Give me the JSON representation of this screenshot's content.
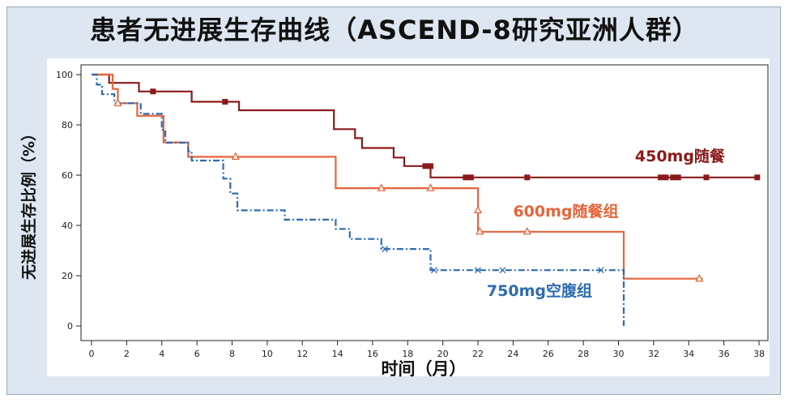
{
  "title": "患者无进展生存曲线（ASCEND-8研究亚洲人群）",
  "chart_data": {
    "type": "line",
    "subtype": "kaplan-meier-step",
    "title": "患者无进展生存曲线（ASCEND-8研究亚洲人群）",
    "xlabel": "时间（月）",
    "ylabel": "无进展生存比例（%）",
    "xlim": [
      0,
      38
    ],
    "ylim": [
      0,
      100
    ],
    "xticks": [
      0,
      2,
      4,
      6,
      8,
      10,
      12,
      14,
      16,
      18,
      20,
      22,
      24,
      26,
      28,
      30,
      32,
      34,
      36,
      38
    ],
    "yticks": [
      0,
      20,
      40,
      60,
      80,
      100
    ],
    "grid": false,
    "series": [
      {
        "name": "450mg随餐",
        "color": "#8b1a1a",
        "line_style": "solid",
        "censor_marker": "square",
        "steps": [
          [
            0,
            100
          ],
          [
            1.0,
            100
          ],
          [
            1.0,
            96.7
          ],
          [
            2.7,
            96.7
          ],
          [
            2.7,
            93.3
          ],
          [
            5.7,
            93.3
          ],
          [
            5.7,
            89.2
          ],
          [
            8.4,
            89.2
          ],
          [
            8.4,
            85.8
          ],
          [
            13.8,
            85.8
          ],
          [
            13.8,
            78.3
          ],
          [
            15.0,
            78.3
          ],
          [
            15.0,
            74.7
          ],
          [
            15.4,
            74.7
          ],
          [
            15.4,
            70.8
          ],
          [
            17.2,
            70.8
          ],
          [
            17.2,
            67.0
          ],
          [
            17.8,
            67.0
          ],
          [
            17.8,
            63.6
          ],
          [
            19.3,
            63.6
          ],
          [
            19.3,
            59.1
          ],
          [
            38.0,
            59.1
          ]
        ],
        "censored": [
          [
            3.5,
            93.3
          ],
          [
            7.6,
            89.2
          ],
          [
            19.0,
            63.6
          ],
          [
            19.3,
            63.6
          ],
          [
            21.3,
            59.1
          ],
          [
            21.6,
            59.1
          ],
          [
            24.8,
            59.1
          ],
          [
            32.4,
            59.1
          ],
          [
            32.7,
            59.1
          ],
          [
            33.1,
            59.1
          ],
          [
            33.4,
            59.1
          ],
          [
            35.0,
            59.1
          ],
          [
            37.9,
            59.1
          ]
        ],
        "label": "450mg随餐"
      },
      {
        "name": "600mg随餐组",
        "color": "#e8643a",
        "line_style": "solid",
        "censor_marker": "triangle",
        "steps": [
          [
            0,
            100
          ],
          [
            1.2,
            100
          ],
          [
            1.2,
            94.3
          ],
          [
            1.5,
            94.3
          ],
          [
            1.5,
            88.6
          ],
          [
            2.6,
            88.6
          ],
          [
            2.6,
            83.6
          ],
          [
            4.1,
            83.6
          ],
          [
            4.1,
            73.0
          ],
          [
            5.5,
            73.0
          ],
          [
            5.5,
            67.3
          ],
          [
            13.9,
            67.3
          ],
          [
            13.9,
            54.8
          ],
          [
            22.0,
            54.8
          ],
          [
            22.0,
            37.5
          ],
          [
            30.3,
            37.5
          ],
          [
            30.3,
            18.8
          ],
          [
            34.8,
            18.8
          ]
        ],
        "censored": [
          [
            1.5,
            88.6
          ],
          [
            8.2,
            67.3
          ],
          [
            16.5,
            54.8
          ],
          [
            19.3,
            54.8
          ],
          [
            22.0,
            46.0
          ],
          [
            22.1,
            37.5
          ],
          [
            24.8,
            37.5
          ],
          [
            34.6,
            18.8
          ]
        ],
        "label": "600mg随餐组"
      },
      {
        "name": "750mg空腹组",
        "color": "#2e6bb0",
        "line_style": "dashdot",
        "censor_marker": "x",
        "steps": [
          [
            0,
            100
          ],
          [
            0.3,
            100
          ],
          [
            0.3,
            96.0
          ],
          [
            0.6,
            96.0
          ],
          [
            0.6,
            92.2
          ],
          [
            1.3,
            92.2
          ],
          [
            1.3,
            88.6
          ],
          [
            2.8,
            88.6
          ],
          [
            2.8,
            84.4
          ],
          [
            4.0,
            84.4
          ],
          [
            4.0,
            78.0
          ],
          [
            4.2,
            78.0
          ],
          [
            4.2,
            72.9
          ],
          [
            5.5,
            72.9
          ],
          [
            5.5,
            69.5
          ],
          [
            5.7,
            69.5
          ],
          [
            5.7,
            65.8
          ],
          [
            7.5,
            65.8
          ],
          [
            7.5,
            58.6
          ],
          [
            7.9,
            58.6
          ],
          [
            7.9,
            52.7
          ],
          [
            8.3,
            52.7
          ],
          [
            8.3,
            46.0
          ],
          [
            11.0,
            46.0
          ],
          [
            11.0,
            42.3
          ],
          [
            13.9,
            42.3
          ],
          [
            13.9,
            38.6
          ],
          [
            14.7,
            38.6
          ],
          [
            14.7,
            34.6
          ],
          [
            16.5,
            34.6
          ],
          [
            16.5,
            30.6
          ],
          [
            19.3,
            30.6
          ],
          [
            19.3,
            22.2
          ],
          [
            30.3,
            22.2
          ],
          [
            30.3,
            0
          ]
        ],
        "censored": [
          [
            16.7,
            30.6
          ],
          [
            19.5,
            22.2
          ],
          [
            22.0,
            22.2
          ],
          [
            23.4,
            22.2
          ],
          [
            29.0,
            22.2
          ]
        ],
        "label": "750mg空腹组"
      }
    ]
  }
}
